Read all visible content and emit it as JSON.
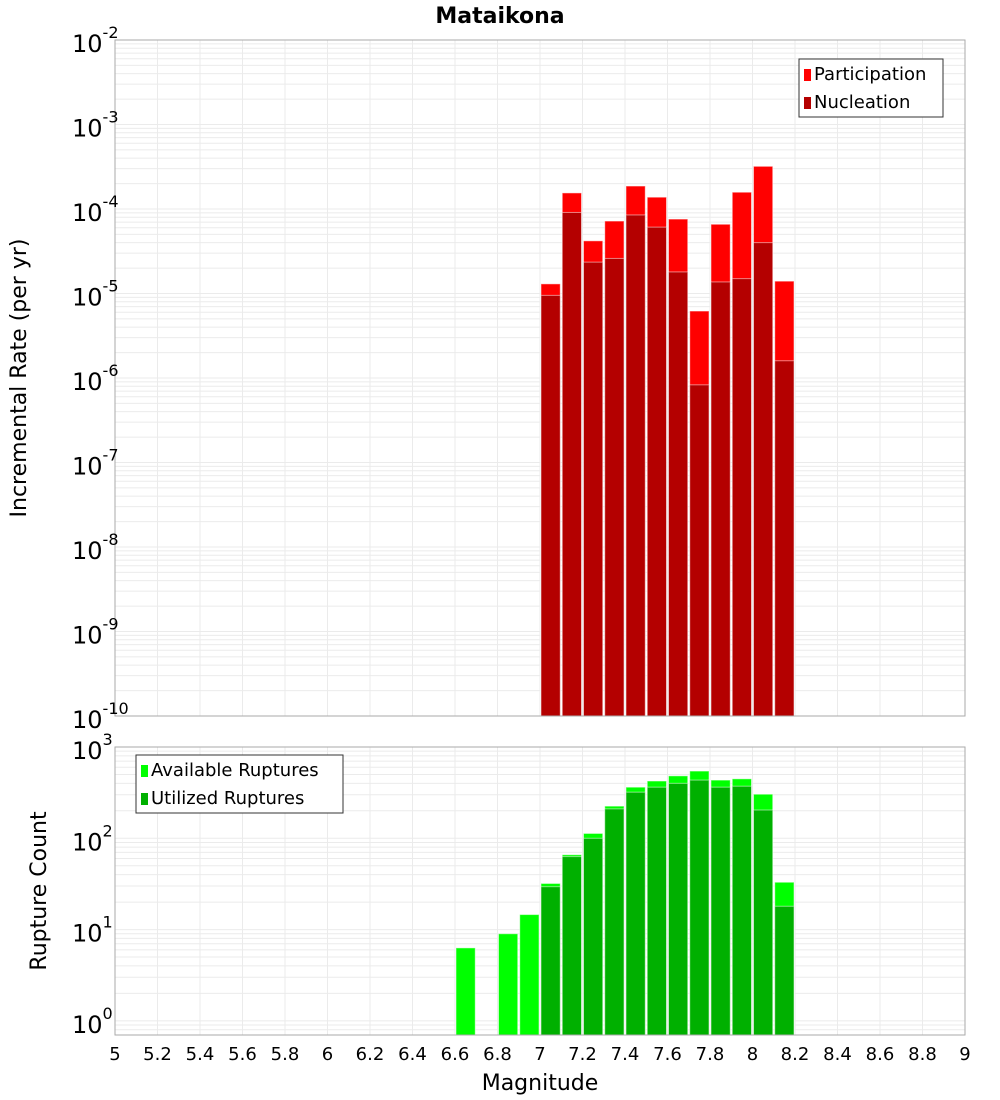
{
  "chart_data": [
    {
      "type": "bar",
      "title": "Mataikona",
      "xlabel": "",
      "ylabel": "Incremental Rate (per yr)",
      "yscale": "log",
      "xlim": [
        5,
        9
      ],
      "ylim": [
        1e-10,
        0.01
      ],
      "grid": true,
      "legend_position": "top-right",
      "bin_width": 0.1,
      "x": [
        7.0,
        7.1,
        7.2,
        7.3,
        7.4,
        7.5,
        7.6,
        7.7,
        7.8,
        7.9,
        8.0,
        8.1
      ],
      "series": [
        {
          "name": "Participation",
          "color": "#ff0000",
          "values": [
            1.3e-05,
            0.000155,
            4.2e-05,
            7.2e-05,
            0.000187,
            0.000138,
            7.6e-05,
            6.2e-06,
            6.6e-05,
            0.000158,
            0.00032,
            1.4e-05
          ]
        },
        {
          "name": "Nucleation",
          "color": "#b40000",
          "values": [
            9.5e-06,
            9.1e-05,
            2.35e-05,
            2.6e-05,
            8.5e-05,
            6.1e-05,
            1.8e-05,
            8.3e-07,
            1.37e-05,
            1.5e-05,
            4e-05,
            1.6e-06
          ]
        }
      ],
      "ytick_exponents": [
        "-10",
        "-9",
        "-8",
        "-7",
        "-6",
        "-5",
        "-4",
        "-3",
        "-2"
      ]
    },
    {
      "type": "bar",
      "title": "",
      "xlabel": "Magnitude",
      "ylabel": "Rupture Count",
      "yscale": "log",
      "xlim": [
        5,
        9
      ],
      "ylim": [
        0.7,
        1000
      ],
      "grid": true,
      "legend_position": "top-left",
      "bin_width": 0.1,
      "x": [
        6.6,
        6.8,
        6.9,
        7.0,
        7.1,
        7.2,
        7.3,
        7.4,
        7.5,
        7.6,
        7.7,
        7.8,
        7.9,
        8.0,
        8.1
      ],
      "series": [
        {
          "name": "Available Ruptures",
          "color": "#00ff00",
          "values": [
            6.3,
            9,
            14.6,
            32,
            66,
            113,
            225,
            363,
            424,
            483,
            545,
            434,
            448,
            304,
            33
          ]
        },
        {
          "name": "Utilized Ruptures",
          "color": "#00b000",
          "values": [
            0,
            0,
            0,
            29.5,
            63,
            100,
            210,
            320,
            363,
            400,
            434,
            363,
            372,
            204,
            18
          ]
        }
      ],
      "ytick_exponents": [
        "0",
        "1",
        "2",
        "3"
      ],
      "xtick_labels": [
        "5",
        "5.2",
        "5.4",
        "5.6",
        "5.8",
        "6",
        "6.2",
        "6.4",
        "6.6",
        "6.8",
        "7",
        "7.2",
        "7.4",
        "7.6",
        "7.8",
        "8",
        "8.2",
        "8.4",
        "8.6",
        "8.8",
        "9"
      ]
    }
  ]
}
